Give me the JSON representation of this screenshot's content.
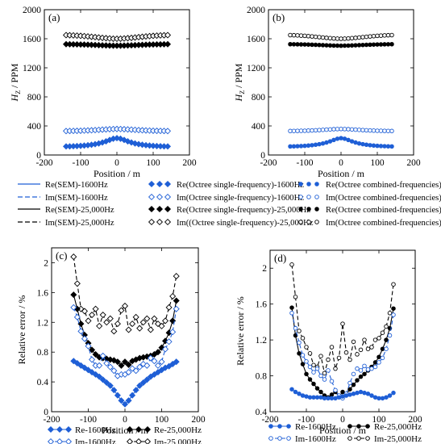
{
  "style": {
    "blue": "#1f5fd6",
    "black": "#000000"
  },
  "labels": {
    "panel_a": "(a)",
    "panel_b": "(b)",
    "panel_c": "(c)",
    "panel_d": "(d)",
    "hz_ylabel": "H",
    "hz_ylabel_sub": "Z",
    "hz_ylabel_unit": " / PPM",
    "xlabel": "Position / m",
    "err_ylabel": "Relative error / %"
  },
  "top_legend": [
    {
      "name": "Re(SEM)-1600Hz",
      "marker": "line",
      "color": "blue",
      "dash": false
    },
    {
      "name": "Re(Octree single-frequency)-1600Hz",
      "marker": "diamond-filled",
      "color": "blue"
    },
    {
      "name": "Re(Octree combined-frequencies)-1600Hz",
      "marker": "circle-filled",
      "color": "blue"
    },
    {
      "name": "Im(SEM)-1600Hz",
      "marker": "line",
      "color": "blue",
      "dash": true
    },
    {
      "name": "Im(Octree single-frequency)-1600Hz",
      "marker": "diamond-open",
      "color": "blue"
    },
    {
      "name": "Im(Octree combined-frequencies)-1600Hz",
      "marker": "circle-open",
      "color": "blue"
    },
    {
      "name": "Re(SEM)-25,000Hz",
      "marker": "line",
      "color": "black",
      "dash": false
    },
    {
      "name": "Re(Octree single-frequency)-25,000Hz",
      "marker": "diamond-filled",
      "color": "black"
    },
    {
      "name": "Re(Octree combined-frequencies)-25,000Hz",
      "marker": "circle-filled",
      "color": "black"
    },
    {
      "name": "Im(SEM)-25,000Hz",
      "marker": "line",
      "color": "black",
      "dash": true
    },
    {
      "name": "Im((Octree single-frequency)-25,000Hz",
      "marker": "diamond-open",
      "color": "black"
    },
    {
      "name": "Im(Octree combined-frequencies)-25,000Hz",
      "marker": "circle-open",
      "color": "black"
    }
  ],
  "legend_c": [
    {
      "name": "Re-1600Hz",
      "marker": "diamond-filled",
      "color": "blue",
      "dash": false
    },
    {
      "name": "Re-25,000Hz",
      "marker": "diamond-filled",
      "color": "black",
      "dash": false
    },
    {
      "name": "Im-1600Hz",
      "marker": "diamond-open",
      "color": "blue",
      "dash": true
    },
    {
      "name": "Im-25,000Hz",
      "marker": "diamond-open",
      "color": "black",
      "dash": true
    }
  ],
  "legend_d": [
    {
      "name": "Re-1600Hz",
      "marker": "circle-filled",
      "color": "blue",
      "dash": false
    },
    {
      "name": "Re-25,000Hz",
      "marker": "circle-filled",
      "color": "black",
      "dash": false
    },
    {
      "name": "Im-1600Hz",
      "marker": "circle-open",
      "color": "blue",
      "dash": true
    },
    {
      "name": "Im-25,000Hz",
      "marker": "circle-open",
      "color": "black",
      "dash": true
    }
  ],
  "chart_data": [
    {
      "type": "line",
      "panel": "(a)",
      "x": [
        -140,
        -130,
        -120,
        -110,
        -100,
        -90,
        -80,
        -70,
        -60,
        -50,
        -40,
        -30,
        -20,
        -10,
        0,
        10,
        20,
        30,
        40,
        50,
        60,
        70,
        80,
        90,
        100,
        110,
        120,
        130,
        140
      ],
      "xlim": [
        -200,
        200
      ],
      "ylim": [
        0,
        2000
      ],
      "xticks": [
        -200,
        -100,
        0,
        100,
        200
      ],
      "yticks": [
        0,
        400,
        800,
        1200,
        1600,
        2000
      ],
      "series": [
        {
          "name": "Im-25,000Hz",
          "color": "black",
          "marker": "diamond-open",
          "dash": true,
          "values": [
            1650,
            1648,
            1646,
            1643,
            1640,
            1636,
            1632,
            1627,
            1622,
            1617,
            1612,
            1608,
            1604,
            1601,
            1600,
            1601,
            1604,
            1608,
            1612,
            1617,
            1622,
            1627,
            1632,
            1636,
            1640,
            1643,
            1646,
            1648,
            1650
          ]
        },
        {
          "name": "Re-25,000Hz",
          "color": "black",
          "marker": "diamond-filled",
          "dash": false,
          "values": [
            1525,
            1524,
            1523,
            1522,
            1521,
            1520,
            1518,
            1516,
            1514,
            1512,
            1510,
            1508,
            1506,
            1505,
            1504,
            1505,
            1506,
            1508,
            1510,
            1512,
            1514,
            1516,
            1518,
            1520,
            1521,
            1522,
            1523,
            1524,
            1525
          ]
        },
        {
          "name": "Im-1600Hz",
          "color": "blue",
          "marker": "diamond-open",
          "dash": true,
          "values": [
            330,
            331,
            332,
            333,
            334,
            336,
            338,
            340,
            343,
            346,
            349,
            352,
            355,
            357,
            358,
            357,
            355,
            352,
            349,
            346,
            343,
            340,
            338,
            336,
            334,
            333,
            332,
            331,
            330
          ]
        },
        {
          "name": "Re-1600Hz",
          "color": "blue",
          "marker": "diamond-filled",
          "dash": false,
          "values": [
            118,
            119,
            121,
            123,
            126,
            130,
            135,
            141,
            149,
            159,
            172,
            188,
            207,
            224,
            232,
            224,
            207,
            188,
            172,
            159,
            149,
            141,
            135,
            130,
            126,
            123,
            121,
            119,
            118
          ]
        }
      ]
    },
    {
      "type": "line",
      "panel": "(b)",
      "x": [
        -140,
        -130,
        -120,
        -110,
        -100,
        -90,
        -80,
        -70,
        -60,
        -50,
        -40,
        -30,
        -20,
        -10,
        0,
        10,
        20,
        30,
        40,
        50,
        60,
        70,
        80,
        90,
        100,
        110,
        120,
        130,
        140
      ],
      "xlim": [
        -200,
        200
      ],
      "ylim": [
        0,
        2000
      ],
      "xticks": [
        -200,
        -100,
        0,
        100,
        200
      ],
      "yticks": [
        0,
        400,
        800,
        1200,
        1600,
        2000
      ],
      "series": [
        {
          "name": "Im-25,000Hz",
          "color": "black",
          "marker": "circle-open",
          "dash": true,
          "values": [
            1650,
            1648,
            1646,
            1643,
            1640,
            1636,
            1632,
            1627,
            1622,
            1617,
            1612,
            1608,
            1604,
            1601,
            1600,
            1601,
            1604,
            1608,
            1612,
            1617,
            1622,
            1627,
            1632,
            1636,
            1640,
            1643,
            1646,
            1648,
            1650
          ]
        },
        {
          "name": "Re-25,000Hz",
          "color": "black",
          "marker": "circle-filled",
          "dash": false,
          "values": [
            1525,
            1524,
            1523,
            1522,
            1521,
            1520,
            1518,
            1516,
            1514,
            1512,
            1510,
            1508,
            1506,
            1505,
            1504,
            1505,
            1506,
            1508,
            1510,
            1512,
            1514,
            1516,
            1518,
            1520,
            1521,
            1522,
            1523,
            1524,
            1525
          ]
        },
        {
          "name": "Im-1600Hz",
          "color": "blue",
          "marker": "circle-open",
          "dash": true,
          "values": [
            330,
            331,
            332,
            333,
            334,
            336,
            338,
            340,
            343,
            346,
            349,
            352,
            355,
            357,
            358,
            357,
            355,
            352,
            349,
            346,
            343,
            340,
            338,
            336,
            334,
            333,
            332,
            331,
            330
          ]
        },
        {
          "name": "Re-1600Hz",
          "color": "blue",
          "marker": "circle-filled",
          "dash": false,
          "values": [
            118,
            119,
            121,
            123,
            126,
            130,
            135,
            141,
            149,
            159,
            172,
            188,
            207,
            224,
            232,
            224,
            207,
            188,
            172,
            159,
            149,
            141,
            135,
            130,
            126,
            123,
            121,
            119,
            118
          ]
        }
      ]
    },
    {
      "type": "line",
      "panel": "(c)",
      "x": [
        -140,
        -130,
        -120,
        -110,
        -100,
        -90,
        -80,
        -70,
        -60,
        -50,
        -40,
        -30,
        -20,
        -10,
        0,
        10,
        20,
        30,
        40,
        50,
        60,
        70,
        80,
        90,
        100,
        110,
        120,
        130,
        140
      ],
      "xlim": [
        -200,
        200
      ],
      "ylim": [
        0,
        2.2
      ],
      "xticks": [
        -200,
        -100,
        0,
        100,
        200
      ],
      "yticks": [
        0,
        0.4,
        0.8,
        1.2,
        1.6,
        2.0
      ],
      "series": [
        {
          "name": "Im-25,000Hz",
          "color": "black",
          "marker": "diamond-open",
          "dash": true,
          "values": [
            2.08,
            1.72,
            1.38,
            1.35,
            1.22,
            1.3,
            1.38,
            1.15,
            1.3,
            1.2,
            1.25,
            1.08,
            1.18,
            1.36,
            1.42,
            1.1,
            1.18,
            1.27,
            1.12,
            1.2,
            1.25,
            1.1,
            1.25,
            1.18,
            1.15,
            1.22,
            1.4,
            1.55,
            1.82
          ]
        },
        {
          "name": "Re-25,000Hz",
          "color": "black",
          "marker": "diamond-filled",
          "dash": false,
          "values": [
            1.57,
            1.38,
            1.18,
            1.03,
            0.92,
            0.83,
            0.77,
            0.73,
            0.72,
            0.71,
            0.7,
            0.69,
            0.67,
            0.62,
            0.67,
            0.63,
            0.68,
            0.7,
            0.72,
            0.73,
            0.74,
            0.75,
            0.77,
            0.8,
            0.86,
            0.95,
            1.06,
            1.22,
            1.49
          ]
        },
        {
          "name": "Im-1600Hz",
          "color": "blue",
          "marker": "diamond-open",
          "dash": true,
          "values": [
            1.4,
            1.27,
            1.08,
            0.98,
            0.88,
            0.7,
            0.62,
            0.62,
            0.75,
            0.65,
            0.6,
            0.55,
            0.48,
            0.5,
            0.5,
            0.53,
            0.58,
            0.55,
            0.6,
            0.64,
            0.62,
            0.72,
            0.68,
            0.62,
            0.67,
            0.84,
            0.94,
            1.07,
            1.38
          ]
        },
        {
          "name": "Re-1600Hz",
          "color": "blue",
          "marker": "diamond-filled",
          "dash": false,
          "values": [
            0.68,
            0.65,
            0.62,
            0.59,
            0.56,
            0.53,
            0.5,
            0.47,
            0.43,
            0.39,
            0.35,
            0.29,
            0.22,
            0.15,
            0.1,
            0.15,
            0.22,
            0.29,
            0.35,
            0.39,
            0.43,
            0.47,
            0.5,
            0.53,
            0.56,
            0.59,
            0.61,
            0.64,
            0.67
          ]
        }
      ]
    },
    {
      "type": "line",
      "panel": "(d)",
      "x": [
        -140,
        -130,
        -120,
        -110,
        -100,
        -90,
        -80,
        -70,
        -60,
        -50,
        -40,
        -30,
        -20,
        -10,
        0,
        10,
        20,
        30,
        40,
        50,
        60,
        70,
        80,
        90,
        100,
        110,
        120,
        130,
        140
      ],
      "xlim": [
        -200,
        200
      ],
      "ylim": [
        0.4,
        2.2
      ],
      "xticks": [
        -200,
        -100,
        0,
        100,
        200
      ],
      "yticks": [
        0.4,
        0.8,
        1.2,
        1.6,
        2.0
      ],
      "series": [
        {
          "name": "Im-25,000Hz",
          "color": "black",
          "marker": "circle-open",
          "dash": true,
          "values": [
            2.04,
            1.68,
            1.3,
            1.22,
            1.12,
            1.05,
            0.92,
            0.9,
            1.02,
            0.83,
            0.98,
            1.12,
            0.88,
            1.0,
            1.38,
            1.06,
            0.98,
            1.18,
            1.04,
            1.09,
            1.2,
            1.1,
            1.12,
            1.2,
            1.22,
            1.28,
            1.35,
            1.5,
            1.82
          ]
        },
        {
          "name": "Re-25,000Hz",
          "color": "black",
          "marker": "circle-filled",
          "dash": false,
          "values": [
            1.56,
            1.25,
            1.05,
            0.93,
            0.82,
            0.76,
            0.71,
            0.66,
            0.62,
            0.58,
            0.56,
            0.59,
            0.62,
            0.57,
            0.62,
            0.59,
            0.65,
            0.7,
            0.75,
            0.79,
            0.82,
            0.86,
            0.9,
            0.95,
            1.01,
            1.1,
            1.2,
            1.33,
            1.55
          ]
        },
        {
          "name": "Im-1600Hz",
          "color": "blue",
          "marker": "circle-open",
          "dash": true,
          "values": [
            1.5,
            1.33,
            1.17,
            1.03,
            0.96,
            0.9,
            0.84,
            0.88,
            0.8,
            0.76,
            0.86,
            0.74,
            0.64,
            0.58,
            0.55,
            0.6,
            0.72,
            0.82,
            0.88,
            0.86,
            0.91,
            0.87,
            0.88,
            0.9,
            0.95,
            1.0,
            1.1,
            1.25,
            1.48
          ]
        },
        {
          "name": "Re-1600Hz",
          "color": "blue",
          "marker": "circle-filled",
          "dash": false,
          "values": [
            0.65,
            0.62,
            0.6,
            0.58,
            0.57,
            0.56,
            0.56,
            0.56,
            0.56,
            0.55,
            0.55,
            0.55,
            0.55,
            0.56,
            0.57,
            0.58,
            0.59,
            0.6,
            0.61,
            0.62,
            0.61,
            0.6,
            0.58,
            0.56,
            0.55,
            0.55,
            0.56,
            0.58,
            0.61
          ]
        }
      ]
    }
  ]
}
